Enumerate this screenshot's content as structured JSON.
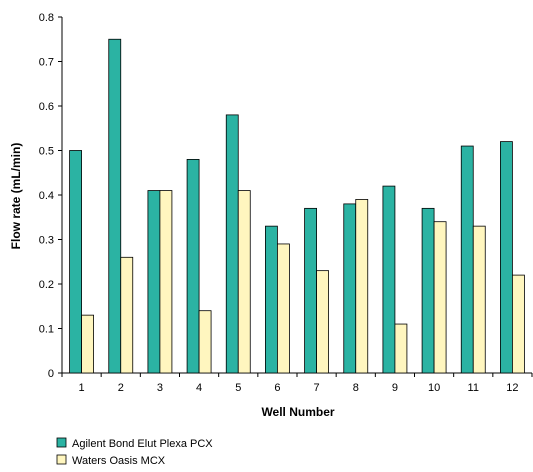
{
  "chart_data": {
    "type": "bar",
    "title": "",
    "xlabel": "Well Number",
    "ylabel": "Flow rate (mL/min)",
    "ylim": [
      0,
      0.8
    ],
    "yticks": [
      "0",
      "0.1",
      "0.2",
      "0.3",
      "0.4",
      "0.5",
      "0.6",
      "0.7",
      "0.8"
    ],
    "categories": [
      "1",
      "2",
      "3",
      "4",
      "5",
      "6",
      "7",
      "8",
      "9",
      "10",
      "11",
      "12"
    ],
    "grid": false,
    "legend_position": "bottom-left",
    "series": [
      {
        "name": "Agilent Bond Elut Plexa PCX",
        "color": "#2bb3a3",
        "values": [
          0.5,
          0.75,
          0.41,
          0.48,
          0.58,
          0.33,
          0.37,
          0.38,
          0.42,
          0.37,
          0.51,
          0.52
        ]
      },
      {
        "name": "Waters Oasis MCX",
        "color": "#fff6bf",
        "values": [
          0.13,
          0.26,
          0.41,
          0.14,
          0.41,
          0.29,
          0.23,
          0.39,
          0.11,
          0.34,
          0.33,
          0.22
        ]
      }
    ]
  }
}
